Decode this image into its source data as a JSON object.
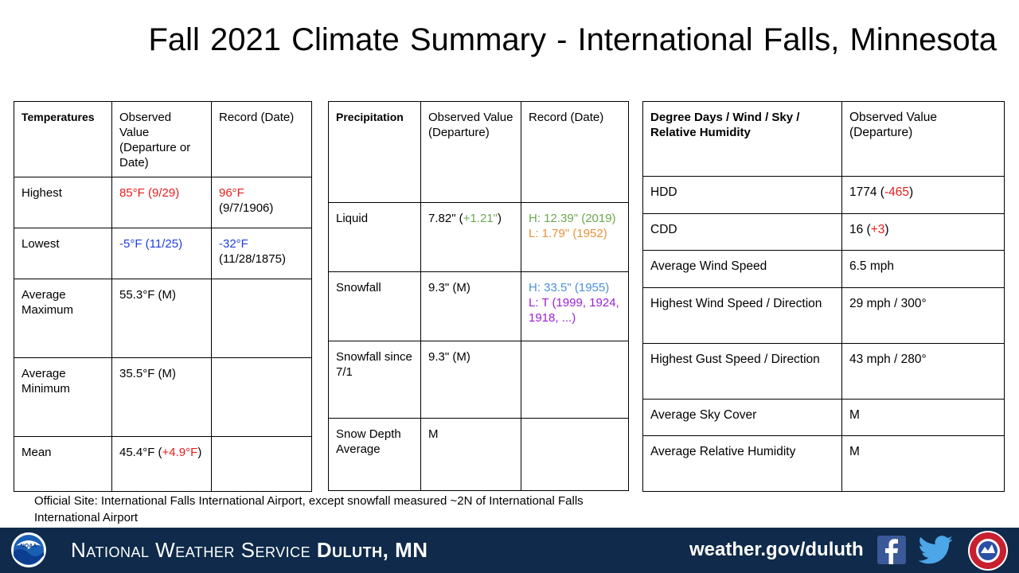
{
  "title": "Fall 2021 Climate Summary - International Falls,  Minnesota",
  "temperatures": {
    "header": [
      "Temperatures",
      "Observed Value (Departure or Date)",
      "Record (Date)"
    ],
    "rows": [
      {
        "label": "Highest",
        "observed": "85°F (9/29)",
        "record": "96°F",
        "record_date": "(9/7/1906)"
      },
      {
        "label": "Lowest",
        "observed": "-5°F (11/25)",
        "record": "-32°F",
        "record_date": "(11/28/1875)"
      },
      {
        "label": "Average Maximum",
        "observed": "55.3°F (M)",
        "record": ""
      },
      {
        "label": "Average Minimum",
        "observed": "35.5°F (M)",
        "record": ""
      },
      {
        "label": "Mean",
        "observed_value": "45.4°F (",
        "observed_departure": "+4.9°F",
        "observed_close": ")",
        "record": ""
      }
    ]
  },
  "precipitation": {
    "header": [
      "Precipitation",
      "Observed Value (Departure)",
      "Record (Date)"
    ],
    "rows": [
      {
        "label": "Liquid",
        "observed_value": "7.82\" (",
        "observed_departure": "+1.21\"",
        "observed_close": ")",
        "record_high": "H: 12.39\" (2019)",
        "record_low": "L: 1.79\" (1952)"
      },
      {
        "label": "Snowfall",
        "observed": "9.3\" (M)",
        "record_high": "H: 33.5\" (1955)",
        "record_low": "L: T (1999, 1924, 1918, ...)"
      },
      {
        "label": "Snowfall since 7/1",
        "observed": "9.3\" (M)",
        "record": ""
      },
      {
        "label": "Snow Depth Average",
        "observed": "M",
        "record": ""
      }
    ]
  },
  "degree_days": {
    "header": [
      "Degree Days / Wind  / Sky / Relative Humidity",
      "Observed Value (Departure)"
    ],
    "rows": [
      {
        "label": "HDD",
        "value": "1774 (",
        "departure": "-465",
        "close": ")"
      },
      {
        "label": "CDD",
        "value": "16 (",
        "departure": "+3",
        "close": ")"
      },
      {
        "label": "Average Wind Speed",
        "value": "6.5 mph"
      },
      {
        "label": "Highest Wind Speed / Direction",
        "value": "29 mph / 300°"
      },
      {
        "label": "Highest Gust Speed / Direction",
        "value": "43 mph / 280°"
      },
      {
        "label": "Average Sky Cover",
        "value": "M"
      },
      {
        "label": "Average Relative Humidity",
        "value": "M"
      }
    ]
  },
  "site_note": "Official Site: International Falls International Airport, except snowfall measured ~2N of International Falls International Airport",
  "footer": {
    "agency_prefix": "National Weather Service",
    "office": "Duluth, MN",
    "url": "weather.gov/duluth",
    "noaa_logo_text": "NOAA",
    "icons": [
      "noaa-logo",
      "facebook-icon",
      "twitter-icon",
      "nws-logo"
    ]
  },
  "colors": {
    "footer_bg": "#0f2a4a",
    "warm": "#e81c1c",
    "cold": "#1f3fd8",
    "record_high_liquid": "#6aa84f",
    "record_low_liquid": "#e6913a",
    "record_high_snow": "#4a90d9",
    "record_low_snow": "#9b1fd9"
  }
}
